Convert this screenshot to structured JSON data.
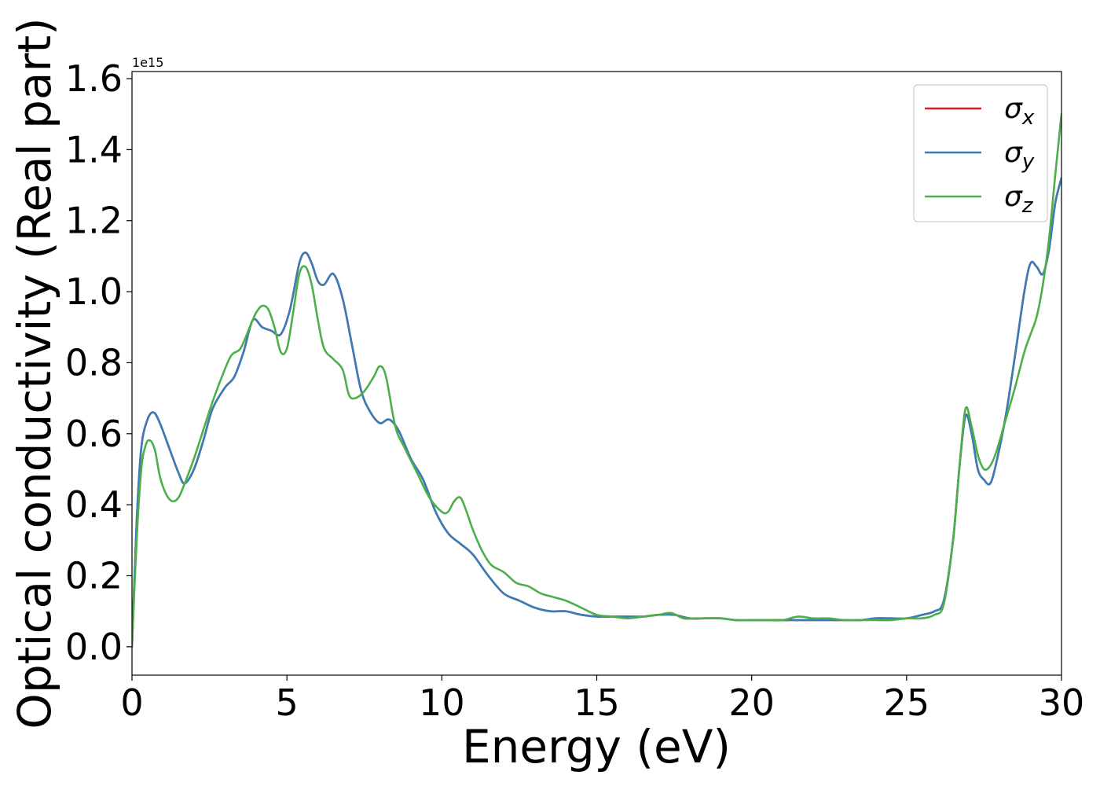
{
  "chart_data": {
    "type": "line",
    "xlabel": "Energy (eV)",
    "ylabel": "Optical conductivity (Real part)",
    "y_offset_label": "1e15",
    "xlim": [
      0,
      30
    ],
    "ylim": [
      -0.08,
      1.62
    ],
    "xticks": [
      0,
      5,
      10,
      15,
      20,
      25,
      30
    ],
    "yticks": [
      0.0,
      0.2,
      0.4,
      0.6,
      0.8,
      1.0,
      1.2,
      1.4,
      1.6
    ],
    "grid": false,
    "legend_position": "top-right",
    "series": [
      {
        "name": "σx",
        "symbol": "σ",
        "subscript": "x",
        "color": "#e41a1c",
        "x": [
          0,
          0.15,
          0.3,
          0.5,
          0.7,
          0.9,
          1.2,
          1.5,
          1.7,
          2.0,
          2.3,
          2.6,
          3.0,
          3.3,
          3.6,
          3.9,
          4.2,
          4.5,
          4.8,
          5.1,
          5.4,
          5.6,
          5.8,
          6.0,
          6.2,
          6.5,
          6.8,
          7.1,
          7.4,
          7.7,
          8.0,
          8.3,
          8.6,
          9.0,
          9.4,
          9.8,
          10.2,
          10.6,
          11.0,
          11.5,
          12.0,
          12.5,
          13.0,
          13.5,
          14.0,
          14.5,
          15.0,
          15.5,
          16.0,
          16.5,
          17.0,
          17.5,
          18.0,
          18.5,
          19.0,
          19.5,
          20.0,
          20.5,
          21.0,
          21.5,
          22.0,
          22.5,
          23.0,
          23.5,
          24.0,
          24.5,
          25.0,
          25.5,
          25.9,
          26.2,
          26.5,
          26.7,
          26.9,
          27.1,
          27.3,
          27.5,
          27.7,
          27.9,
          28.2,
          28.5,
          28.8,
          29.0,
          29.2,
          29.4,
          29.6,
          29.8,
          30.0
        ],
        "y": [
          0.0,
          0.35,
          0.56,
          0.64,
          0.66,
          0.63,
          0.56,
          0.49,
          0.46,
          0.5,
          0.58,
          0.67,
          0.73,
          0.76,
          0.83,
          0.92,
          0.9,
          0.89,
          0.88,
          0.95,
          1.08,
          1.11,
          1.08,
          1.03,
          1.02,
          1.05,
          0.98,
          0.85,
          0.72,
          0.66,
          0.63,
          0.64,
          0.61,
          0.53,
          0.47,
          0.38,
          0.32,
          0.29,
          0.26,
          0.2,
          0.15,
          0.13,
          0.11,
          0.1,
          0.1,
          0.09,
          0.085,
          0.085,
          0.085,
          0.085,
          0.09,
          0.09,
          0.08,
          0.08,
          0.08,
          0.075,
          0.075,
          0.075,
          0.075,
          0.075,
          0.075,
          0.075,
          0.075,
          0.075,
          0.08,
          0.08,
          0.08,
          0.09,
          0.1,
          0.13,
          0.3,
          0.5,
          0.65,
          0.6,
          0.5,
          0.47,
          0.46,
          0.52,
          0.65,
          0.82,
          1.0,
          1.08,
          1.07,
          1.05,
          1.12,
          1.25,
          1.32
        ]
      },
      {
        "name": "σy",
        "symbol": "σ",
        "subscript": "y",
        "color": "#377eb8",
        "x": [
          0,
          0.15,
          0.3,
          0.5,
          0.7,
          0.9,
          1.2,
          1.5,
          1.7,
          2.0,
          2.3,
          2.6,
          3.0,
          3.3,
          3.6,
          3.9,
          4.2,
          4.5,
          4.8,
          5.1,
          5.4,
          5.6,
          5.8,
          6.0,
          6.2,
          6.5,
          6.8,
          7.1,
          7.4,
          7.7,
          8.0,
          8.3,
          8.6,
          9.0,
          9.4,
          9.8,
          10.2,
          10.6,
          11.0,
          11.5,
          12.0,
          12.5,
          13.0,
          13.5,
          14.0,
          14.5,
          15.0,
          15.5,
          16.0,
          16.5,
          17.0,
          17.5,
          18.0,
          18.5,
          19.0,
          19.5,
          20.0,
          20.5,
          21.0,
          21.5,
          22.0,
          22.5,
          23.0,
          23.5,
          24.0,
          24.5,
          25.0,
          25.5,
          25.9,
          26.2,
          26.5,
          26.7,
          26.9,
          27.1,
          27.3,
          27.5,
          27.7,
          27.9,
          28.2,
          28.5,
          28.8,
          29.0,
          29.2,
          29.4,
          29.6,
          29.8,
          30.0
        ],
        "y": [
          0.0,
          0.35,
          0.56,
          0.64,
          0.66,
          0.63,
          0.56,
          0.49,
          0.46,
          0.5,
          0.58,
          0.67,
          0.73,
          0.76,
          0.83,
          0.92,
          0.9,
          0.89,
          0.88,
          0.95,
          1.08,
          1.11,
          1.08,
          1.03,
          1.02,
          1.05,
          0.98,
          0.85,
          0.72,
          0.66,
          0.63,
          0.64,
          0.61,
          0.53,
          0.47,
          0.38,
          0.32,
          0.29,
          0.26,
          0.2,
          0.15,
          0.13,
          0.11,
          0.1,
          0.1,
          0.09,
          0.085,
          0.085,
          0.085,
          0.085,
          0.09,
          0.09,
          0.08,
          0.08,
          0.08,
          0.075,
          0.075,
          0.075,
          0.075,
          0.075,
          0.075,
          0.075,
          0.075,
          0.075,
          0.08,
          0.08,
          0.08,
          0.09,
          0.1,
          0.13,
          0.3,
          0.5,
          0.65,
          0.6,
          0.5,
          0.47,
          0.46,
          0.52,
          0.65,
          0.82,
          1.0,
          1.08,
          1.07,
          1.05,
          1.12,
          1.25,
          1.32
        ]
      },
      {
        "name": "σz",
        "symbol": "σ",
        "subscript": "z",
        "color": "#4daf4a",
        "x": [
          0,
          0.15,
          0.3,
          0.45,
          0.6,
          0.75,
          0.9,
          1.1,
          1.3,
          1.5,
          1.7,
          2.0,
          2.3,
          2.6,
          2.9,
          3.2,
          3.5,
          3.8,
          4.0,
          4.2,
          4.4,
          4.6,
          4.8,
          5.0,
          5.2,
          5.4,
          5.6,
          5.8,
          6.0,
          6.2,
          6.5,
          6.8,
          7.0,
          7.2,
          7.5,
          7.8,
          8.0,
          8.2,
          8.5,
          8.8,
          9.2,
          9.6,
          10.0,
          10.2,
          10.4,
          10.6,
          10.8,
          11.0,
          11.3,
          11.6,
          12.0,
          12.4,
          12.8,
          13.2,
          13.6,
          14.0,
          14.5,
          15.0,
          15.5,
          16.0,
          16.5,
          17.0,
          17.4,
          17.8,
          18.2,
          18.6,
          19.0,
          19.5,
          20.0,
          20.5,
          21.0,
          21.5,
          22.0,
          22.5,
          23.0,
          23.5,
          24.0,
          24.5,
          25.0,
          25.5,
          25.9,
          26.2,
          26.5,
          26.7,
          26.9,
          27.1,
          27.3,
          27.5,
          27.7,
          27.9,
          28.2,
          28.5,
          28.8,
          29.0,
          29.2,
          29.4,
          29.6,
          29.8,
          30.0
        ],
        "y": [
          0.0,
          0.3,
          0.5,
          0.57,
          0.58,
          0.55,
          0.48,
          0.43,
          0.41,
          0.42,
          0.46,
          0.53,
          0.61,
          0.69,
          0.76,
          0.82,
          0.84,
          0.9,
          0.94,
          0.96,
          0.95,
          0.9,
          0.83,
          0.84,
          0.94,
          1.05,
          1.07,
          1.02,
          0.92,
          0.84,
          0.81,
          0.78,
          0.71,
          0.7,
          0.72,
          0.76,
          0.79,
          0.76,
          0.62,
          0.56,
          0.49,
          0.42,
          0.38,
          0.38,
          0.41,
          0.42,
          0.38,
          0.33,
          0.27,
          0.23,
          0.21,
          0.18,
          0.17,
          0.15,
          0.14,
          0.13,
          0.11,
          0.09,
          0.085,
          0.08,
          0.085,
          0.09,
          0.095,
          0.08,
          0.08,
          0.08,
          0.08,
          0.075,
          0.075,
          0.075,
          0.075,
          0.085,
          0.08,
          0.08,
          0.075,
          0.075,
          0.075,
          0.075,
          0.08,
          0.08,
          0.09,
          0.12,
          0.3,
          0.5,
          0.67,
          0.62,
          0.54,
          0.5,
          0.51,
          0.55,
          0.64,
          0.73,
          0.83,
          0.88,
          0.93,
          1.02,
          1.15,
          1.33,
          1.5
        ]
      }
    ]
  }
}
